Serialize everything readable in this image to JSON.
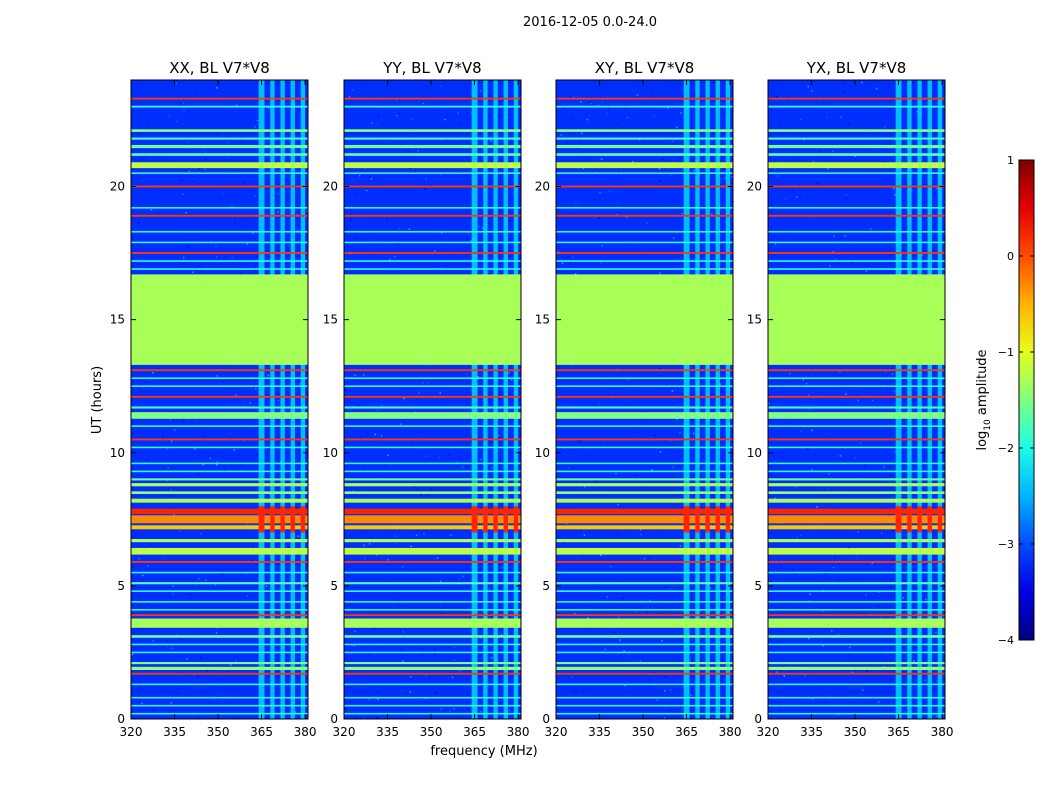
{
  "chart_data": {
    "type": "heatmap",
    "suptitle": "2016-12-05 0.0-24.0",
    "panels": [
      {
        "title": "XX, BL V7*V8",
        "polarization": "XX"
      },
      {
        "title": "YY, BL V7*V8",
        "polarization": "YY"
      },
      {
        "title": "XY, BL V7*V8",
        "polarization": "XY"
      },
      {
        "title": "YX, BL V7*V8",
        "polarization": "YX"
      }
    ],
    "xlabel": "frequency (MHz)",
    "ylabel": "UT (hours)",
    "xlim": [
      320,
      381
    ],
    "ylim": [
      0,
      24
    ],
    "xticks": [
      320,
      335,
      350,
      365,
      380
    ],
    "xtick_labels": [
      "320",
      "335",
      "350",
      "365",
      "380"
    ],
    "yticks": [
      0,
      5,
      10,
      15,
      20
    ],
    "ytick_labels": [
      "0",
      "5",
      "10",
      "15",
      "20"
    ],
    "colorbar": {
      "label": "log10 amplitude",
      "label_main": "log",
      "label_sub": "10",
      "label_rest": " amplitude",
      "range": [
        -4,
        1
      ],
      "ticks": [
        -4,
        -3,
        -2,
        -1,
        0,
        1
      ],
      "tick_labels": [
        "−4",
        "−3",
        "−2",
        "−1",
        "0",
        "1"
      ],
      "colormap": "jet"
    },
    "flagged_block": {
      "ut_start": 13.3,
      "ut_end": 16.7,
      "value": -1.3
    },
    "rfi_bands": [
      {
        "f_start": 364,
        "f_end": 366
      },
      {
        "f_start": 368,
        "f_end": 369.5
      },
      {
        "f_start": 371.5,
        "f_end": 373
      },
      {
        "f_start": 375,
        "f_end": 376.5
      },
      {
        "f_start": 378.5,
        "f_end": 380
      }
    ],
    "horizontal_features": [
      {
        "ut": 23.3,
        "width": 0.07,
        "value": 0.1
      },
      {
        "ut": 23.0,
        "width": 0.07,
        "value": -1.9
      },
      {
        "ut": 22.1,
        "width": 0.1,
        "value": -1.5
      },
      {
        "ut": 21.8,
        "width": 0.08,
        "value": -1.8
      },
      {
        "ut": 21.5,
        "width": 0.12,
        "value": -1.6
      },
      {
        "ut": 21.2,
        "width": 0.1,
        "value": -1.7
      },
      {
        "ut": 20.8,
        "width": 0.22,
        "value": -1.2
      },
      {
        "ut": 20.5,
        "width": 0.06,
        "value": -1.9
      },
      {
        "ut": 20.0,
        "width": 0.07,
        "value": 0.1
      },
      {
        "ut": 19.2,
        "width": 0.06,
        "value": -1.9
      },
      {
        "ut": 18.9,
        "width": 0.07,
        "value": 0.1
      },
      {
        "ut": 18.3,
        "width": 0.06,
        "value": -1.9
      },
      {
        "ut": 17.9,
        "width": 0.06,
        "value": -1.9
      },
      {
        "ut": 17.5,
        "width": 0.07,
        "value": 0.1
      },
      {
        "ut": 17.2,
        "width": 0.06,
        "value": -1.9
      },
      {
        "ut": 16.9,
        "width": 0.06,
        "value": -1.9
      },
      {
        "ut": 13.1,
        "width": 0.07,
        "value": 0.1
      },
      {
        "ut": 12.8,
        "width": 0.06,
        "value": -1.9
      },
      {
        "ut": 12.5,
        "width": 0.06,
        "value": -1.9
      },
      {
        "ut": 12.1,
        "width": 0.07,
        "value": 0.1
      },
      {
        "ut": 11.7,
        "width": 0.08,
        "value": -1.8
      },
      {
        "ut": 11.4,
        "width": 0.25,
        "value": -1.5
      },
      {
        "ut": 11.0,
        "width": 0.06,
        "value": -1.9
      },
      {
        "ut": 10.5,
        "width": 0.07,
        "value": 0.1
      },
      {
        "ut": 10.2,
        "width": 0.06,
        "value": -1.9
      },
      {
        "ut": 9.6,
        "width": 0.06,
        "value": -1.9
      },
      {
        "ut": 9.3,
        "width": 0.06,
        "value": -1.9
      },
      {
        "ut": 9.0,
        "width": 0.08,
        "value": -1.6
      },
      {
        "ut": 8.8,
        "width": 0.12,
        "value": -1.3
      },
      {
        "ut": 8.5,
        "width": 0.1,
        "value": -1.4
      },
      {
        "ut": 8.2,
        "width": 0.15,
        "value": -1.3
      },
      {
        "ut": 7.8,
        "width": 0.2,
        "value": 0.2
      },
      {
        "ut": 7.5,
        "width": 0.3,
        "value": -0.3
      },
      {
        "ut": 7.2,
        "width": 0.15,
        "value": -0.6
      },
      {
        "ut": 6.7,
        "width": 0.12,
        "value": -1.3
      },
      {
        "ut": 6.3,
        "width": 0.25,
        "value": -1.2
      },
      {
        "ut": 5.9,
        "width": 0.07,
        "value": 0.1
      },
      {
        "ut": 5.5,
        "width": 0.06,
        "value": -1.9
      },
      {
        "ut": 5.1,
        "width": 0.08,
        "value": -1.7
      },
      {
        "ut": 4.8,
        "width": 0.06,
        "value": -1.9
      },
      {
        "ut": 4.4,
        "width": 0.06,
        "value": -1.9
      },
      {
        "ut": 4.1,
        "width": 0.06,
        "value": -1.9
      },
      {
        "ut": 3.9,
        "width": 0.07,
        "value": 0.1
      },
      {
        "ut": 3.6,
        "width": 0.35,
        "value": -1.3
      },
      {
        "ut": 3.1,
        "width": 0.1,
        "value": -1.6
      },
      {
        "ut": 2.8,
        "width": 0.06,
        "value": -1.9
      },
      {
        "ut": 2.5,
        "width": 0.06,
        "value": -1.9
      },
      {
        "ut": 2.1,
        "width": 0.08,
        "value": -1.5
      },
      {
        "ut": 1.9,
        "width": 0.12,
        "value": -1.4
      },
      {
        "ut": 1.7,
        "width": 0.07,
        "value": 0.1
      },
      {
        "ut": 1.3,
        "width": 0.06,
        "value": -1.9
      },
      {
        "ut": 0.8,
        "width": 0.06,
        "value": -1.9
      },
      {
        "ut": 0.5,
        "width": 0.06,
        "value": -1.9
      },
      {
        "ut": 0.2,
        "width": 0.06,
        "value": -1.9
      }
    ],
    "rfi_hot_block": {
      "ut_start": 7.0,
      "ut_end": 8.0,
      "value": 0.2
    }
  }
}
